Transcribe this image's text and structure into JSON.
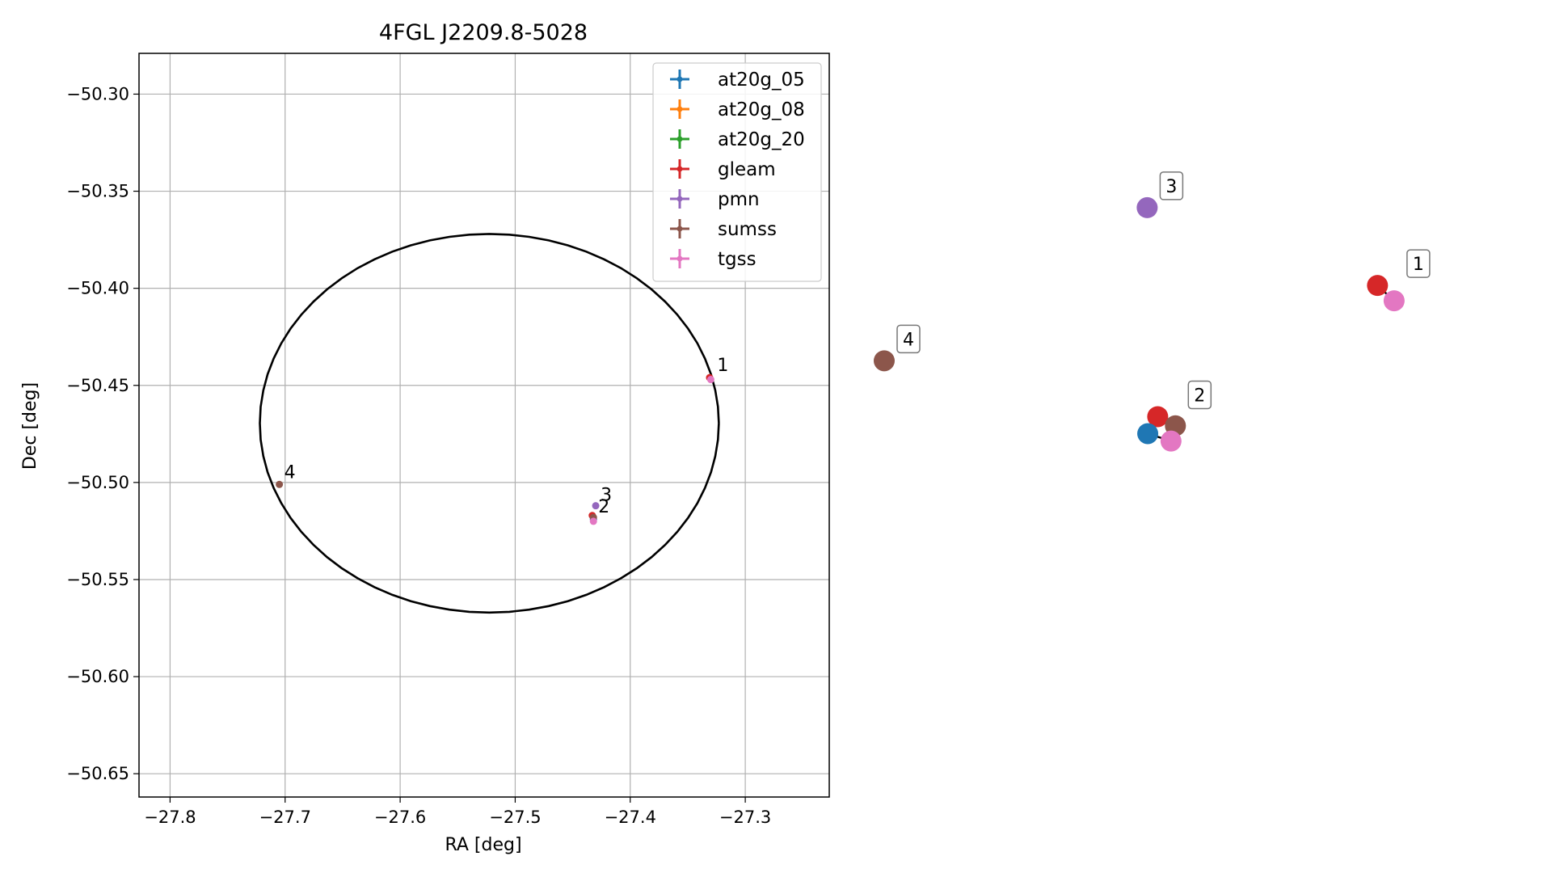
{
  "chart_data": [
    {
      "type": "scatter",
      "title": "4FGL J2209.8-5028",
      "xlabel": "RA [deg]",
      "ylabel": "Dec [deg]",
      "xlim": [
        -27.827,
        -27.227
      ],
      "ylim": [
        -50.662,
        -50.279
      ],
      "xticks": [
        -27.8,
        -27.7,
        -27.6,
        -27.5,
        -27.4,
        -27.3
      ],
      "xtick_labels": [
        "−27.8",
        "−27.7",
        "−27.6",
        "−27.5",
        "−27.4",
        "−27.3"
      ],
      "yticks": [
        -50.3,
        -50.35,
        -50.4,
        -50.45,
        -50.5,
        -50.55,
        -50.6,
        -50.65
      ],
      "ytick_labels": [
        "−50.30",
        "−50.35",
        "−50.40",
        "−50.45",
        "−50.50",
        "−50.55",
        "−50.60",
        "−50.65"
      ],
      "grid": true,
      "legend_position": "top-right",
      "ellipse": {
        "center": [
          -27.5225,
          -50.4695
        ],
        "ra_semi_axis": 0.1995,
        "dec_semi_axis": 0.0975,
        "color": "#000000"
      },
      "series": [
        {
          "name": "at20g_05",
          "color": "#1f77b4",
          "points": [
            {
              "x": -27.432,
              "y": -50.519
            }
          ]
        },
        {
          "name": "at20g_08",
          "color": "#ff7f0e",
          "points": []
        },
        {
          "name": "at20g_20",
          "color": "#2ca02c",
          "points": []
        },
        {
          "name": "gleam",
          "color": "#d62728",
          "points": [
            {
              "x": -27.331,
              "y": -50.446
            },
            {
              "x": -27.433,
              "y": -50.517
            }
          ]
        },
        {
          "name": "pmn",
          "color": "#9467bd",
          "points": [
            {
              "x": -27.43,
              "y": -50.512
            }
          ]
        },
        {
          "name": "sumss",
          "color": "#8c564b",
          "points": [
            {
              "x": -27.705,
              "y": -50.501
            },
            {
              "x": -27.432,
              "y": -50.518
            }
          ]
        },
        {
          "name": "tgss",
          "color": "#e377c2",
          "points": [
            {
              "x": -27.33,
              "y": -50.447
            },
            {
              "x": -27.432,
              "y": -50.52
            }
          ]
        }
      ],
      "annotations": [
        {
          "text": "1",
          "x": -27.33,
          "y": -50.446
        },
        {
          "text": "2",
          "x": -27.432,
          "y": -50.518
        },
        {
          "text": "3",
          "x": -27.43,
          "y": -50.512
        },
        {
          "text": "4",
          "x": -27.705,
          "y": -50.501
        }
      ]
    },
    {
      "type": "scatter",
      "title": "",
      "axes": "off",
      "xlim": [
        0,
        1
      ],
      "ylim": [
        0,
        1
      ],
      "points": [
        {
          "group": "3",
          "color": "#9467bd",
          "x": 0.475,
          "y": 0.842
        },
        {
          "group": "1",
          "color": "#d62728",
          "x": 0.891,
          "y": 0.654
        },
        {
          "group": "1",
          "color": "#e377c2",
          "x": 0.921,
          "y": 0.617
        },
        {
          "group": "4",
          "color": "#8c564b",
          "x": 0.0,
          "y": 0.472
        },
        {
          "group": "2",
          "color": "#d62728",
          "x": 0.494,
          "y": 0.337
        },
        {
          "group": "2",
          "color": "#8c564b",
          "x": 0.526,
          "y": 0.315
        },
        {
          "group": "2",
          "color": "#1f77b4",
          "x": 0.476,
          "y": 0.296
        },
        {
          "group": "2",
          "color": "#e377c2",
          "x": 0.518,
          "y": 0.278
        }
      ],
      "links": [
        {
          "from": 1,
          "to": 2
        },
        {
          "from": 4,
          "to": 5
        },
        {
          "from": 4,
          "to": 6
        },
        {
          "from": 5,
          "to": 7
        },
        {
          "from": 6,
          "to": 7
        }
      ],
      "labels": [
        {
          "text": "3",
          "x": 0.475,
          "y": 0.842
        },
        {
          "text": "1",
          "x": 0.921,
          "y": 0.654
        },
        {
          "text": "4",
          "x": 0.0,
          "y": 0.472
        },
        {
          "text": "2",
          "x": 0.526,
          "y": 0.337
        }
      ]
    }
  ]
}
